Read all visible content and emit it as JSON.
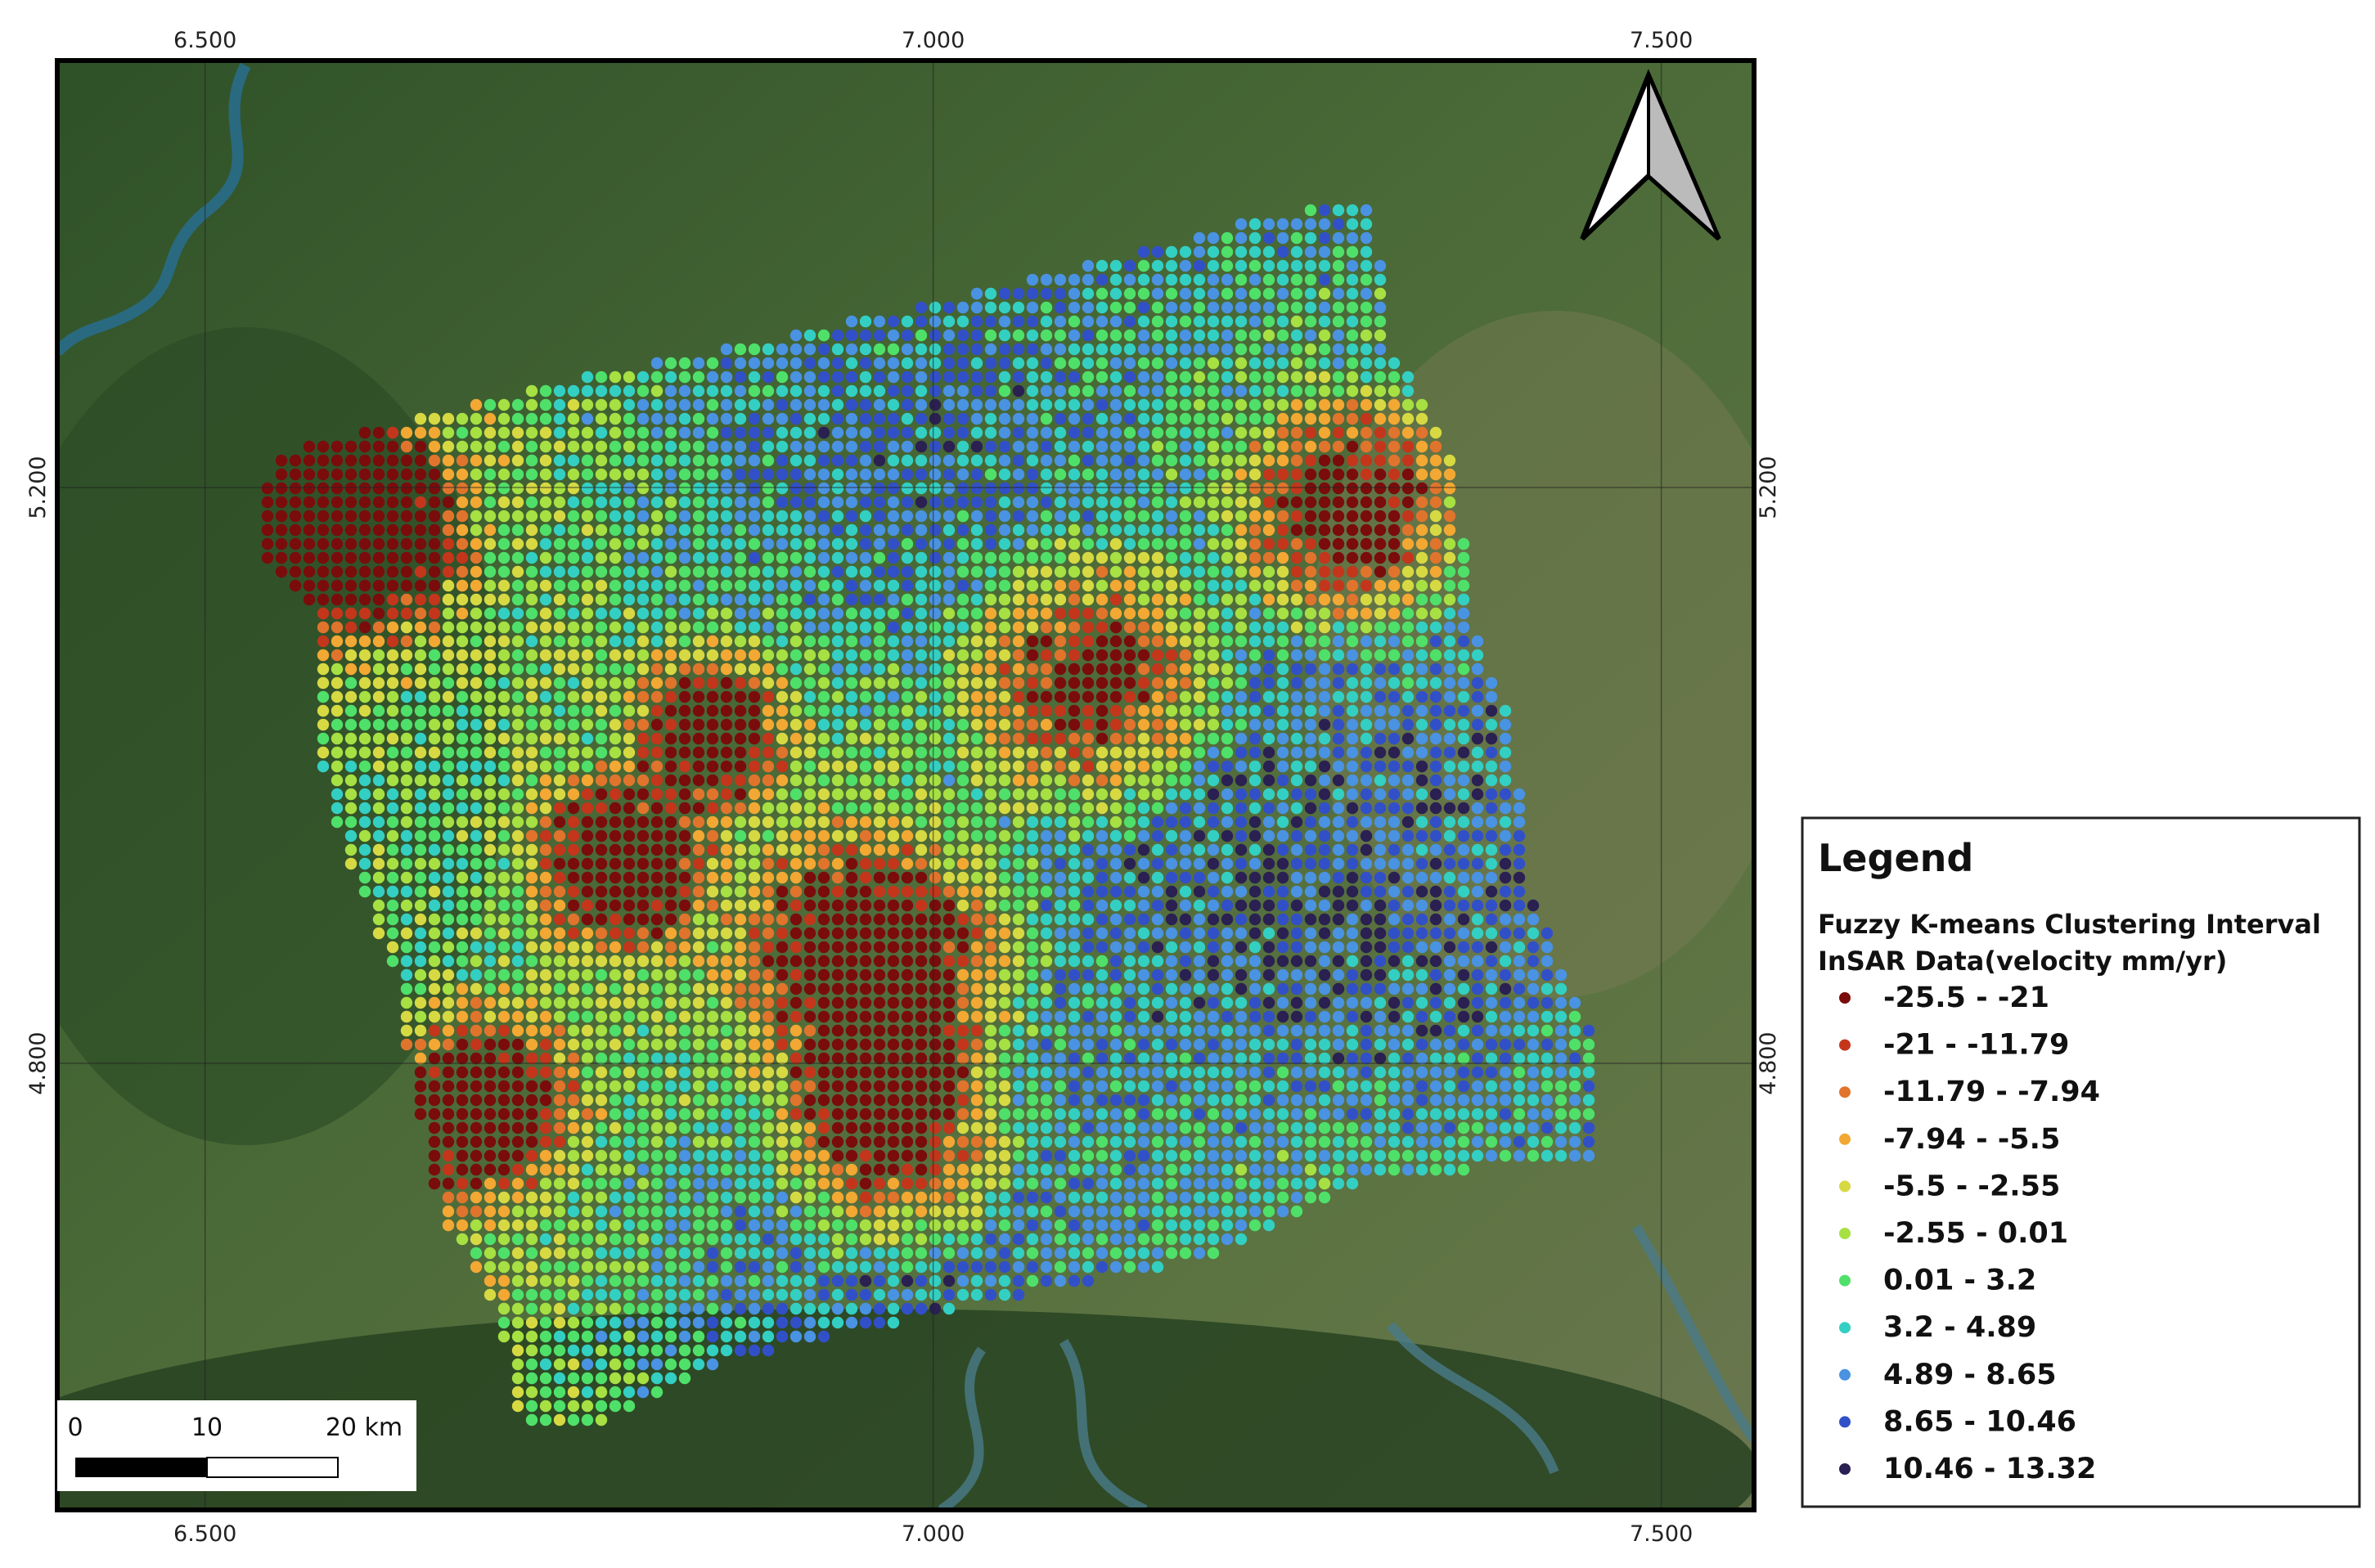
{
  "map": {
    "extent": {
      "xlim": [
        6.3985,
        7.5637
      ],
      "ylim": [
        4.4898,
        5.4966
      ]
    },
    "xticks": [
      {
        "value": 6.5,
        "label": "6.500"
      },
      {
        "value": 7.0,
        "label": "7.000"
      },
      {
        "value": 7.5,
        "label": "7.500"
      }
    ],
    "yticks": [
      {
        "value": 5.2,
        "label": "5.200"
      },
      {
        "value": 4.8,
        "label": "4.800"
      }
    ],
    "grid": true,
    "scale_bar": {
      "labels": [
        "0",
        "10",
        "20 km"
      ]
    },
    "legend": {
      "title": "Legend",
      "layer_title": [
        "Fuzzy K-means Clustering Interval",
        "InSAR Data(velocity mm/yr)"
      ],
      "entries": [
        {
          "label": "-25.5 - -21",
          "color": "#7a0c0c"
        },
        {
          "label": "-21 - -11.79",
          "color": "#c3361b"
        },
        {
          "label": "-11.79 - -7.94",
          "color": "#e0742c"
        },
        {
          "label": "-7.94 - -5.5",
          "color": "#f2a833"
        },
        {
          "label": "-5.5 - -2.55",
          "color": "#d7d943"
        },
        {
          "label": "-2.55 - 0.01",
          "color": "#a6e043"
        },
        {
          "label": "0.01 - 3.2",
          "color": "#4fe06a"
        },
        {
          "label": "3.2 - 4.89",
          "color": "#33cfc3"
        },
        {
          "label": "4.89 - 8.65",
          "color": "#4a92e2"
        },
        {
          "label": "8.65 - 10.46",
          "color": "#3150c8"
        },
        {
          "label": "10.46 - 13.32",
          "color": "#2a2052"
        }
      ]
    }
  }
}
